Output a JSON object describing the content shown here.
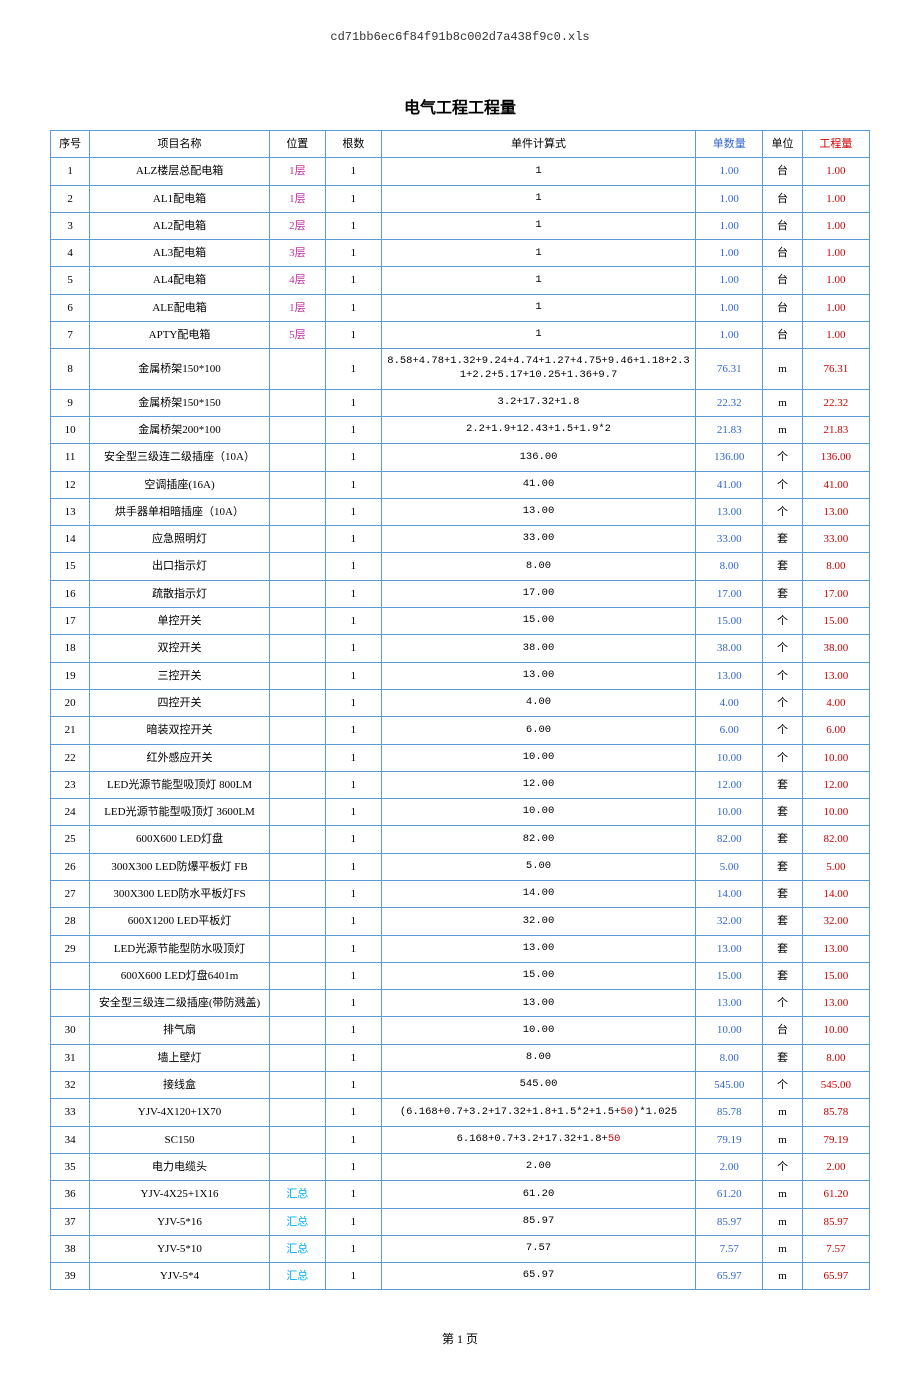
{
  "filename": "cd71bb6ec6f84f91b8c002d7a438f9c0.xls",
  "title": "电气工程工程量",
  "footer": "第 1 页",
  "columns": [
    {
      "label": "序号",
      "class": "hdr-black",
      "width": "col-seq"
    },
    {
      "label": "项目名称",
      "class": "hdr-black",
      "width": "col-name"
    },
    {
      "label": "位置",
      "class": "hdr-black",
      "width": "col-pos"
    },
    {
      "label": "根数",
      "class": "hdr-black",
      "width": "col-count"
    },
    {
      "label": "单件计算式",
      "class": "hdr-black",
      "width": "col-formula"
    },
    {
      "label": "单数量",
      "class": "hdr-blue",
      "width": "col-qty"
    },
    {
      "label": "单位",
      "class": "hdr-black",
      "width": "col-unit"
    },
    {
      "label": "工程量",
      "class": "hdr-red",
      "width": "col-total"
    }
  ],
  "colors": {
    "border": "#5b9bd5",
    "black": "#000000",
    "magenta": "#c030a0",
    "blue": "#3366cc",
    "red": "#cc0000",
    "cyan": "#00b0f0"
  },
  "rows": [
    {
      "seq": "1",
      "name": "ALZ楼层总配电箱",
      "pos": "1层",
      "posColor": "cell-magenta",
      "count": "1",
      "formula": "1",
      "qty": "1.00",
      "unit": "台",
      "total": "1.00"
    },
    {
      "seq": "2",
      "name": "AL1配电箱",
      "pos": "1层",
      "posColor": "cell-magenta",
      "count": "1",
      "formula": "1",
      "qty": "1.00",
      "unit": "台",
      "total": "1.00"
    },
    {
      "seq": "3",
      "name": "AL2配电箱",
      "pos": "2层",
      "posColor": "cell-magenta",
      "count": "1",
      "formula": "1",
      "qty": "1.00",
      "unit": "台",
      "total": "1.00"
    },
    {
      "seq": "4",
      "name": "AL3配电箱",
      "pos": "3层",
      "posColor": "cell-magenta",
      "count": "1",
      "formula": "1",
      "qty": "1.00",
      "unit": "台",
      "total": "1.00"
    },
    {
      "seq": "5",
      "name": "AL4配电箱",
      "pos": "4层",
      "posColor": "cell-magenta",
      "count": "1",
      "formula": "1",
      "qty": "1.00",
      "unit": "台",
      "total": "1.00"
    },
    {
      "seq": "6",
      "name": "ALE配电箱",
      "pos": "1层",
      "posColor": "cell-magenta",
      "count": "1",
      "formula": "1",
      "qty": "1.00",
      "unit": "台",
      "total": "1.00"
    },
    {
      "seq": "7",
      "name": "APTY配电箱",
      "pos": "5层",
      "posColor": "cell-magenta",
      "count": "1",
      "formula": "1",
      "qty": "1.00",
      "unit": "台",
      "total": "1.00"
    },
    {
      "seq": "8",
      "name": "金属桥架150*100",
      "pos": "",
      "posColor": "cell-black",
      "count": "1",
      "formula": "8.58+4.78+1.32+9.24+4.74+1.27+4.75+9.46+1.18+2.31+2.2+5.17+10.25+1.36+9.7",
      "qty": "76.31",
      "unit": "m",
      "total": "76.31"
    },
    {
      "seq": "9",
      "name": "金属桥架150*150",
      "pos": "",
      "posColor": "cell-black",
      "count": "1",
      "formula": "3.2+17.32+1.8",
      "qty": "22.32",
      "unit": "m",
      "total": "22.32"
    },
    {
      "seq": "10",
      "name": "金属桥架200*100",
      "pos": "",
      "posColor": "cell-black",
      "count": "1",
      "formula": "2.2+1.9+12.43+1.5+1.9*2",
      "qty": "21.83",
      "unit": "m",
      "total": "21.83"
    },
    {
      "seq": "11",
      "name": "安全型三级连二级插座（10A）",
      "pos": "",
      "posColor": "cell-black",
      "count": "1",
      "formula": "136.00",
      "qty": "136.00",
      "unit": "个",
      "total": "136.00"
    },
    {
      "seq": "12",
      "name": "空调插座(16A)",
      "pos": "",
      "posColor": "cell-black",
      "count": "1",
      "formula": "41.00",
      "qty": "41.00",
      "unit": "个",
      "total": "41.00"
    },
    {
      "seq": "13",
      "name": "烘手器单相暗插座（10A）",
      "pos": "",
      "posColor": "cell-black",
      "count": "1",
      "formula": "13.00",
      "qty": "13.00",
      "unit": "个",
      "total": "13.00"
    },
    {
      "seq": "14",
      "name": "应急照明灯",
      "pos": "",
      "posColor": "cell-black",
      "count": "1",
      "formula": "33.00",
      "qty": "33.00",
      "unit": "套",
      "total": "33.00"
    },
    {
      "seq": "15",
      "name": "出口指示灯",
      "pos": "",
      "posColor": "cell-black",
      "count": "1",
      "formula": "8.00",
      "qty": "8.00",
      "unit": "套",
      "total": "8.00"
    },
    {
      "seq": "16",
      "name": "疏散指示灯",
      "pos": "",
      "posColor": "cell-black",
      "count": "1",
      "formula": "17.00",
      "qty": "17.00",
      "unit": "套",
      "total": "17.00"
    },
    {
      "seq": "17",
      "name": "单控开关",
      "pos": "",
      "posColor": "cell-black",
      "count": "1",
      "formula": "15.00",
      "qty": "15.00",
      "unit": "个",
      "total": "15.00"
    },
    {
      "seq": "18",
      "name": "双控开关",
      "pos": "",
      "posColor": "cell-black",
      "count": "1",
      "formula": "38.00",
      "qty": "38.00",
      "unit": "个",
      "total": "38.00"
    },
    {
      "seq": "19",
      "name": "三控开关",
      "pos": "",
      "posColor": "cell-black",
      "count": "1",
      "formula": "13.00",
      "qty": "13.00",
      "unit": "个",
      "total": "13.00"
    },
    {
      "seq": "20",
      "name": "四控开关",
      "pos": "",
      "posColor": "cell-black",
      "count": "1",
      "formula": "4.00",
      "qty": "4.00",
      "unit": "个",
      "total": "4.00"
    },
    {
      "seq": "21",
      "name": "暗装双控开关",
      "pos": "",
      "posColor": "cell-black",
      "count": "1",
      "formula": "6.00",
      "qty": "6.00",
      "unit": "个",
      "total": "6.00"
    },
    {
      "seq": "22",
      "name": "红外感应开关",
      "pos": "",
      "posColor": "cell-black",
      "count": "1",
      "formula": "10.00",
      "qty": "10.00",
      "unit": "个",
      "total": "10.00"
    },
    {
      "seq": "23",
      "name": "LED光源节能型吸顶灯 800LM",
      "pos": "",
      "posColor": "cell-black",
      "count": "1",
      "formula": "12.00",
      "qty": "12.00",
      "unit": "套",
      "total": "12.00"
    },
    {
      "seq": "24",
      "name": "LED光源节能型吸顶灯 3600LM",
      "pos": "",
      "posColor": "cell-black",
      "count": "1",
      "formula": "10.00",
      "qty": "10.00",
      "unit": "套",
      "total": "10.00"
    },
    {
      "seq": "25",
      "name": "600X600 LED灯盘",
      "pos": "",
      "posColor": "cell-black",
      "count": "1",
      "formula": "82.00",
      "qty": "82.00",
      "unit": "套",
      "total": "82.00"
    },
    {
      "seq": "26",
      "name": "300X300 LED防爆平板灯 FB",
      "pos": "",
      "posColor": "cell-black",
      "count": "1",
      "formula": "5.00",
      "qty": "5.00",
      "unit": "套",
      "total": "5.00"
    },
    {
      "seq": "27",
      "name": "300X300 LED防水平板灯FS",
      "pos": "",
      "posColor": "cell-black",
      "count": "1",
      "formula": "14.00",
      "qty": "14.00",
      "unit": "套",
      "total": "14.00"
    },
    {
      "seq": "28",
      "name": "600X1200 LED平板灯",
      "pos": "",
      "posColor": "cell-black",
      "count": "1",
      "formula": "32.00",
      "qty": "32.00",
      "unit": "套",
      "total": "32.00"
    },
    {
      "seq": "29",
      "name": "LED光源节能型防水吸顶灯",
      "pos": "",
      "posColor": "cell-black",
      "count": "1",
      "formula": "13.00",
      "qty": "13.00",
      "unit": "套",
      "total": "13.00"
    },
    {
      "seq": "",
      "name": "600X600 LED灯盘6401m",
      "pos": "",
      "posColor": "cell-black",
      "count": "1",
      "formula": "15.00",
      "qty": "15.00",
      "unit": "套",
      "total": "15.00"
    },
    {
      "seq": "",
      "name": "安全型三级连二级插座(带防溅盖)",
      "pos": "",
      "posColor": "cell-black",
      "count": "1",
      "formula": "13.00",
      "qty": "13.00",
      "unit": "个",
      "total": "13.00"
    },
    {
      "seq": "30",
      "name": "排气扇",
      "pos": "",
      "posColor": "cell-black",
      "count": "1",
      "formula": "10.00",
      "qty": "10.00",
      "unit": "台",
      "total": "10.00"
    },
    {
      "seq": "31",
      "name": "墙上壁灯",
      "pos": "",
      "posColor": "cell-black",
      "count": "1",
      "formula": "8.00",
      "qty": "8.00",
      "unit": "套",
      "total": "8.00"
    },
    {
      "seq": "32",
      "name": "接线盒",
      "pos": "",
      "posColor": "cell-black",
      "count": "1",
      "formula": "545.00",
      "qty": "545.00",
      "unit": "个",
      "total": "545.00"
    },
    {
      "seq": "33",
      "name": "YJV-4X120+1X70",
      "pos": "",
      "posColor": "cell-black",
      "count": "1",
      "formula": "(6.168+0.7+3.2+17.32+1.8+1.5*2+1.5+50)*1.025",
      "formulaHasRed": true,
      "redPart": "50",
      "qty": "85.78",
      "unit": "m",
      "total": "85.78"
    },
    {
      "seq": "34",
      "name": "SC150",
      "pos": "",
      "posColor": "cell-black",
      "count": "1",
      "formula": "6.168+0.7+3.2+17.32+1.8+50",
      "formulaHasRed": true,
      "redPart": "50",
      "qty": "79.19",
      "unit": "m",
      "total": "79.19"
    },
    {
      "seq": "35",
      "name": "电力电缆头",
      "pos": "",
      "posColor": "cell-black",
      "count": "1",
      "formula": "2.00",
      "qty": "2.00",
      "unit": "个",
      "total": "2.00"
    },
    {
      "seq": "36",
      "name": "YJV-4X25+1X16",
      "pos": "汇总",
      "posColor": "cell-cyan",
      "count": "1",
      "formula": "61.20",
      "qty": "61.20",
      "unit": "m",
      "total": "61.20"
    },
    {
      "seq": "37",
      "name": "YJV-5*16",
      "pos": "汇总",
      "posColor": "cell-cyan",
      "count": "1",
      "formula": "85.97",
      "qty": "85.97",
      "unit": "m",
      "total": "85.97"
    },
    {
      "seq": "38",
      "name": "YJV-5*10",
      "pos": "汇总",
      "posColor": "cell-cyan",
      "count": "1",
      "formula": "7.57",
      "qty": "7.57",
      "unit": "m",
      "total": "7.57"
    },
    {
      "seq": "39",
      "name": "YJV-5*4",
      "pos": "汇总",
      "posColor": "cell-cyan",
      "count": "1",
      "formula": "65.97",
      "qty": "65.97",
      "unit": "m",
      "total": "65.97"
    }
  ]
}
